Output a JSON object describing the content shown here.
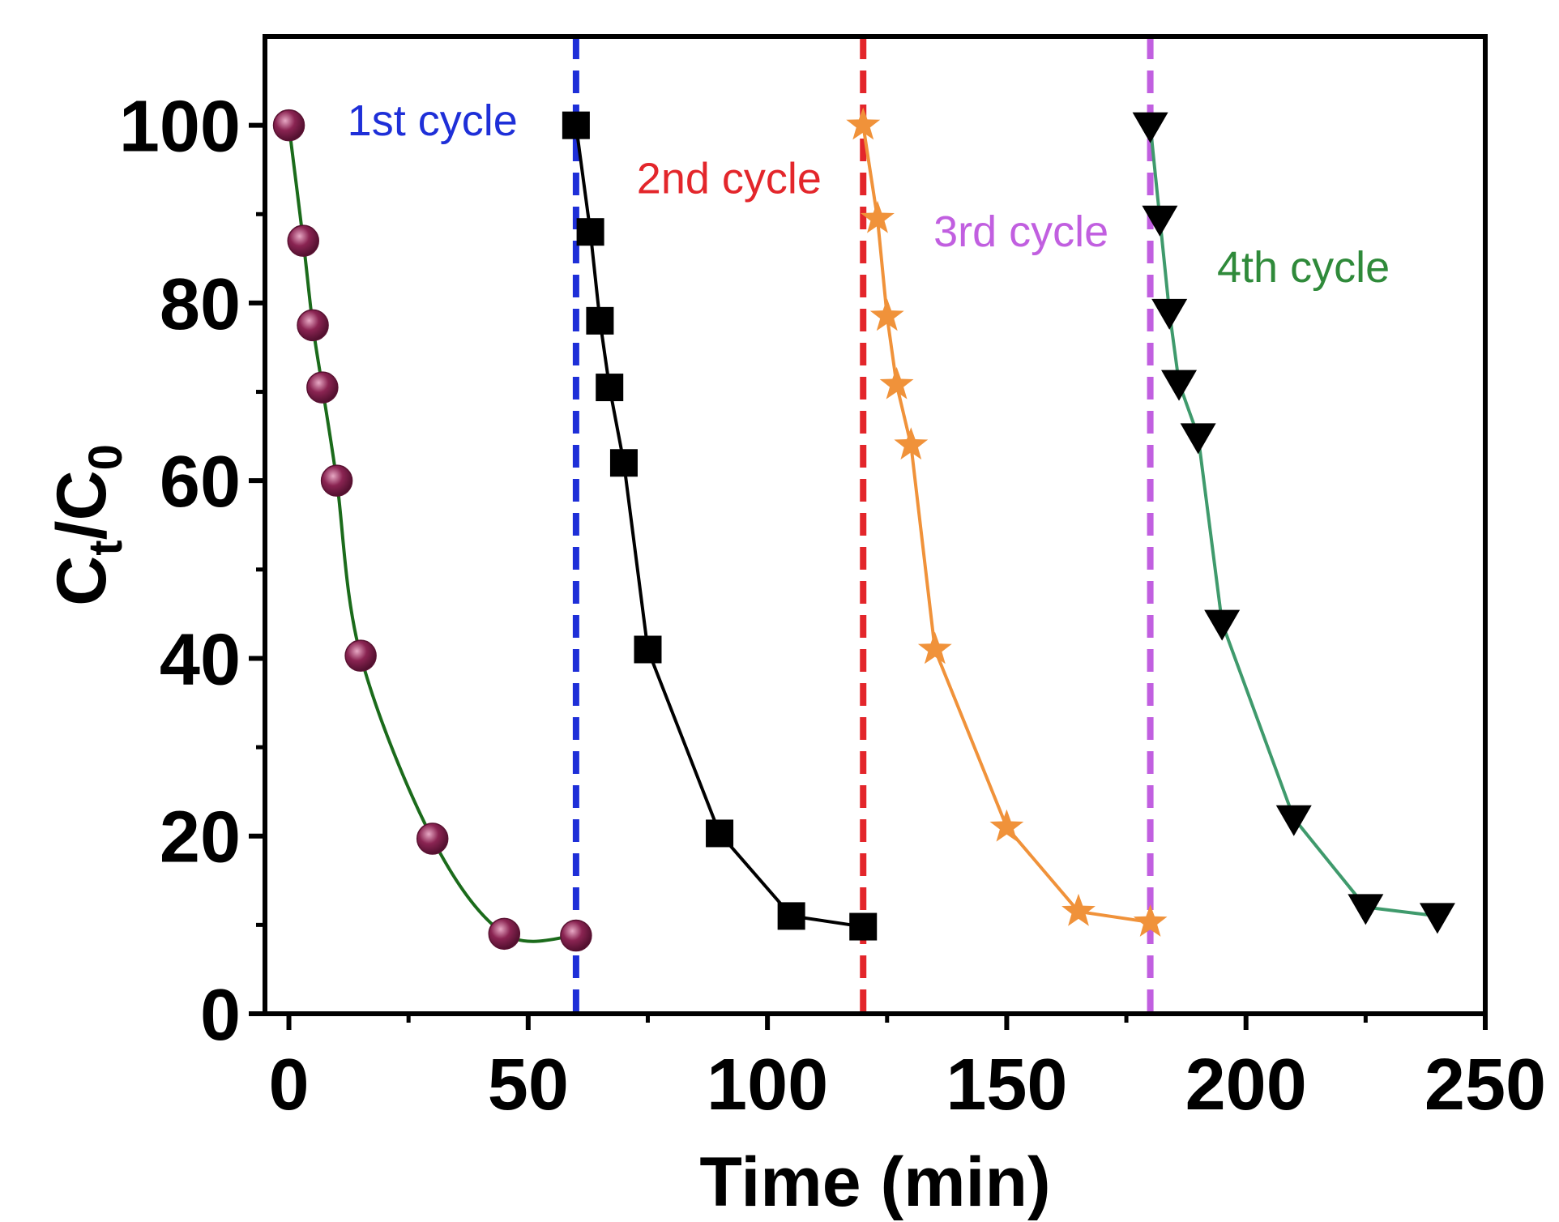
{
  "chart_data": {
    "type": "line",
    "xlabel": "Time (min)",
    "ylabel": {
      "base": "C",
      "sub1": "t",
      "sep": "/",
      "base2": "C",
      "sub2": "0"
    },
    "xlim": [
      -5,
      250
    ],
    "ylim": [
      0,
      110
    ],
    "xticks": [
      0,
      50,
      100,
      150,
      200,
      250
    ],
    "yticks": [
      0,
      20,
      40,
      60,
      80,
      100
    ],
    "xtick_labels": [
      "0",
      "50",
      "100",
      "150",
      "200",
      "250"
    ],
    "ytick_labels": [
      "0",
      "20",
      "40",
      "60",
      "80",
      "100"
    ],
    "grid": false,
    "legend": "none",
    "series": [
      {
        "marker": "sphere",
        "line_color": "#1b6b1b",
        "marker_color": "#7a1a45",
        "smooth": true,
        "points": [
          [
            0,
            100
          ],
          [
            3,
            87
          ],
          [
            5,
            77.5
          ],
          [
            7,
            70.5
          ],
          [
            10,
            60
          ],
          [
            15,
            40.3
          ],
          [
            30,
            19.7
          ],
          [
            45,
            9
          ],
          [
            60,
            8.8
          ]
        ]
      },
      {
        "marker": "square",
        "line_color": "#000000",
        "marker_color": "#000000",
        "smooth": false,
        "points": [
          [
            60,
            100
          ],
          [
            63,
            88
          ],
          [
            65,
            78
          ],
          [
            67,
            70.5
          ],
          [
            70,
            62
          ],
          [
            75,
            41
          ],
          [
            90,
            20.3
          ],
          [
            105,
            11
          ],
          [
            120,
            9.8
          ]
        ]
      },
      {
        "marker": "star",
        "line_color": "#f0923a",
        "marker_color": "#f0923a",
        "smooth": false,
        "points": [
          [
            120,
            100
          ],
          [
            123,
            89.5
          ],
          [
            125,
            78.5
          ],
          [
            127,
            70.8
          ],
          [
            130,
            64
          ],
          [
            135,
            41
          ],
          [
            150,
            21
          ],
          [
            165,
            11.5
          ],
          [
            180,
            10.3
          ]
        ]
      },
      {
        "marker": "triangle-down",
        "line_color": "#3f9a6c",
        "marker_color": "#000000",
        "smooth": false,
        "points": [
          [
            180,
            100
          ],
          [
            182,
            89.5
          ],
          [
            184,
            79
          ],
          [
            186,
            71
          ],
          [
            190,
            65
          ],
          [
            195,
            44
          ],
          [
            210,
            22
          ],
          [
            225,
            12
          ],
          [
            240,
            11
          ]
        ]
      }
    ],
    "vlines": [
      {
        "x": 60,
        "color": "#1e2fd8"
      },
      {
        "x": 120,
        "color": "#e3262b"
      },
      {
        "x": 180,
        "color": "#c15fe0"
      }
    ],
    "annotations": [
      {
        "text": "1st cycle",
        "x": 30,
        "y": 100.5,
        "color": "#1e2fd8",
        "anchor": "middle"
      },
      {
        "text": "2nd cycle",
        "x": 92,
        "y": 94,
        "color": "#e3262b",
        "anchor": "middle"
      },
      {
        "text": "3rd cycle",
        "x": 153,
        "y": 88,
        "color": "#c15fe0",
        "anchor": "middle"
      },
      {
        "text": "4th cycle",
        "x": 212,
        "y": 84,
        "color": "#2f8a3a",
        "anchor": "middle"
      }
    ]
  }
}
